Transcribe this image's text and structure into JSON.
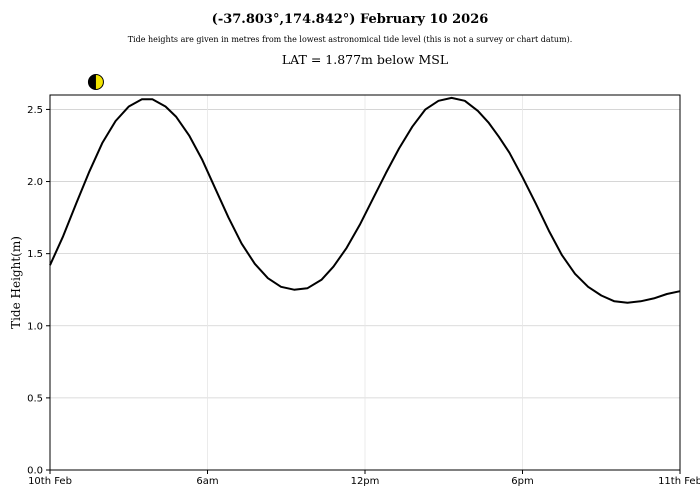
{
  "header": {
    "title": "(-37.803°,174.842°) February 10 2026",
    "subtitle": "Tide heights are given in metres from the lowest astronomical tide level (this is not a survey or chart datum).",
    "datum": "LAT = 1.877m below MSL"
  },
  "icons": {
    "moon_phase": "first-quarter-moon-icon",
    "moon_dark_color": "#000000",
    "moon_light_color": "#f2e400"
  },
  "chart_data": {
    "type": "line",
    "ylabel": "Tide Height(m)",
    "xlim": [
      0,
      24
    ],
    "ylim": [
      0,
      2.6
    ],
    "grid": true,
    "x_ticks": [
      {
        "value": 0,
        "label": "10th Feb"
      },
      {
        "value": 6,
        "label": "6am"
      },
      {
        "value": 12,
        "label": "12pm"
      },
      {
        "value": 18,
        "label": "6pm"
      },
      {
        "value": 24,
        "label": "11th Feb"
      }
    ],
    "y_ticks": [
      {
        "value": 0,
        "label": "0.0"
      },
      {
        "value": 0.5,
        "label": "0.5"
      },
      {
        "value": 1.0,
        "label": "1.0"
      },
      {
        "value": 1.5,
        "label": "1.5"
      },
      {
        "value": 2.0,
        "label": "2.0"
      },
      {
        "value": 2.5,
        "label": "2.5"
      }
    ],
    "moon_marker_x": 1.75,
    "series": [
      {
        "color": "#000000",
        "x": [
          0,
          0.5,
          1,
          1.5,
          2,
          2.5,
          3,
          3.5,
          3.9,
          4.4,
          4.8,
          5.3,
          5.8,
          6.3,
          6.8,
          7.3,
          7.8,
          8.3,
          8.8,
          9.3,
          9.8,
          10.35,
          10.8,
          11.3,
          11.8,
          12.3,
          12.8,
          13.3,
          13.8,
          14.3,
          14.8,
          15.3,
          15.8,
          16.3,
          16.7,
          17.1,
          17.5,
          18,
          18.5,
          19,
          19.5,
          20,
          20.5,
          21,
          21.5,
          22,
          22.5,
          23,
          23.5,
          24
        ],
        "values": [
          1.42,
          1.62,
          1.85,
          2.07,
          2.27,
          2.42,
          2.52,
          2.57,
          2.57,
          2.52,
          2.45,
          2.32,
          2.15,
          1.95,
          1.75,
          1.57,
          1.43,
          1.33,
          1.27,
          1.25,
          1.26,
          1.32,
          1.41,
          1.54,
          1.7,
          1.88,
          2.06,
          2.23,
          2.38,
          2.5,
          2.56,
          2.58,
          2.56,
          2.49,
          2.41,
          2.31,
          2.2,
          2.03,
          1.85,
          1.66,
          1.49,
          1.36,
          1.27,
          1.21,
          1.17,
          1.16,
          1.17,
          1.19,
          1.22,
          1.24
        ]
      }
    ]
  }
}
